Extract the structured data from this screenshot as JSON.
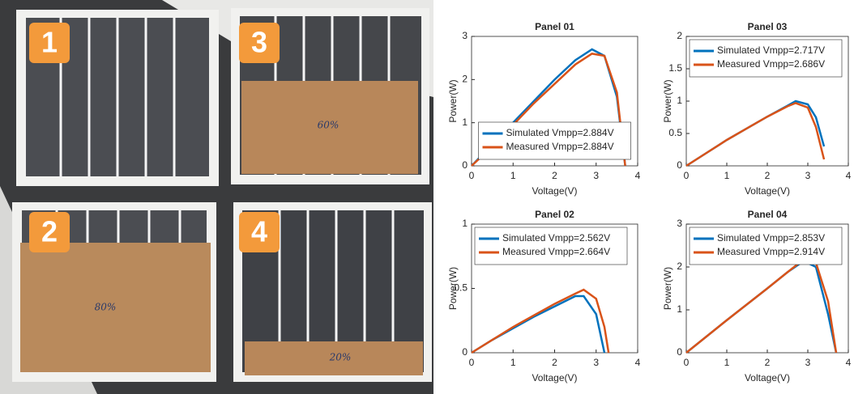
{
  "photo": {
    "labels": [
      "1",
      "2",
      "3",
      "4"
    ],
    "notes": [
      "60%",
      "80%",
      "20%"
    ]
  },
  "chart_data": [
    {
      "type": "line",
      "title": "Panel 01",
      "x_label": "Voltage(V)",
      "y_label": "Power(W)",
      "legend": "lower center",
      "x": [
        0,
        0.5,
        1,
        1.5,
        2,
        2.5,
        2.9,
        3.2,
        3.5,
        3.7
      ],
      "xlim": [
        0,
        4
      ],
      "xticks": [
        0,
        1,
        2,
        3,
        4
      ],
      "ylim": [
        0,
        3
      ],
      "yticks": [
        0,
        1,
        2,
        3
      ],
      "series": [
        {
          "name": "Simulated Vmpp=2.884V",
          "color": "#0072bd",
          "values": [
            0,
            0.5,
            1.0,
            1.5,
            2.0,
            2.45,
            2.7,
            2.55,
            1.6,
            0
          ]
        },
        {
          "name": "Measured Vmpp=2.884V",
          "color": "#d95319",
          "values": [
            0,
            0.45,
            0.95,
            1.45,
            1.9,
            2.35,
            2.6,
            2.55,
            1.7,
            0
          ]
        }
      ]
    },
    {
      "type": "line",
      "title": "Panel 03",
      "x_label": "Voltage(V)",
      "y_label": "Power(W)",
      "legend": "upper left",
      "x": [
        0,
        0.5,
        1,
        1.5,
        2,
        2.5,
        2.7,
        3,
        3.2,
        3.4
      ],
      "xlim": [
        0,
        4
      ],
      "xticks": [
        0,
        1,
        2,
        3,
        4
      ],
      "ylim": [
        0,
        2
      ],
      "yticks": [
        0,
        0.5,
        1,
        1.5,
        2
      ],
      "series": [
        {
          "name": "Simulated Vmpp=2.717V",
          "color": "#0072bd",
          "values": [
            0,
            0.2,
            0.4,
            0.58,
            0.76,
            0.93,
            1.0,
            0.95,
            0.75,
            0.3
          ]
        },
        {
          "name": "Measured Vmpp=2.686V",
          "color": "#d95319",
          "values": [
            0,
            0.2,
            0.4,
            0.58,
            0.76,
            0.92,
            0.97,
            0.9,
            0.6,
            0.1
          ]
        }
      ]
    },
    {
      "type": "line",
      "title": "Panel 02",
      "x_label": "Voltage(V)",
      "y_label": "Power(W)",
      "legend": "upper left",
      "x": [
        0,
        0.5,
        1,
        1.5,
        2,
        2.5,
        2.7,
        3,
        3.2,
        3.3
      ],
      "xlim": [
        0,
        4
      ],
      "xticks": [
        0,
        1,
        2,
        3,
        4
      ],
      "ylim": [
        0,
        1
      ],
      "yticks": [
        0,
        0.5,
        1
      ],
      "series": [
        {
          "name": "Simulated Vmpp=2.562V",
          "color": "#0072bd",
          "values": [
            0,
            0.1,
            0.19,
            0.28,
            0.36,
            0.44,
            0.44,
            0.3,
            0,
            null
          ]
        },
        {
          "name": "Measured Vmpp=2.664V",
          "color": "#d95319",
          "values": [
            0,
            0.1,
            0.2,
            0.29,
            0.38,
            0.46,
            0.49,
            0.42,
            0.2,
            0
          ]
        }
      ]
    },
    {
      "type": "line",
      "title": "Panel 04",
      "x_label": "Voltage(V)",
      "y_label": "Power(W)",
      "legend": "upper left",
      "x": [
        0,
        0.5,
        1,
        1.5,
        2,
        2.5,
        2.9,
        3.2,
        3.5,
        3.7
      ],
      "xlim": [
        0,
        4
      ],
      "xticks": [
        0,
        1,
        2,
        3,
        4
      ],
      "ylim": [
        0,
        3
      ],
      "yticks": [
        0,
        1,
        2,
        3
      ],
      "series": [
        {
          "name": "Simulated Vmpp=2.853V",
          "color": "#0072bd",
          "values": [
            0,
            0.38,
            0.76,
            1.13,
            1.5,
            1.88,
            2.14,
            2.0,
            0.9,
            0
          ]
        },
        {
          "name": "Measured Vmpp=2.914V",
          "color": "#d95319",
          "values": [
            0,
            0.38,
            0.76,
            1.13,
            1.5,
            1.88,
            2.18,
            2.1,
            1.2,
            0
          ]
        }
      ]
    }
  ]
}
